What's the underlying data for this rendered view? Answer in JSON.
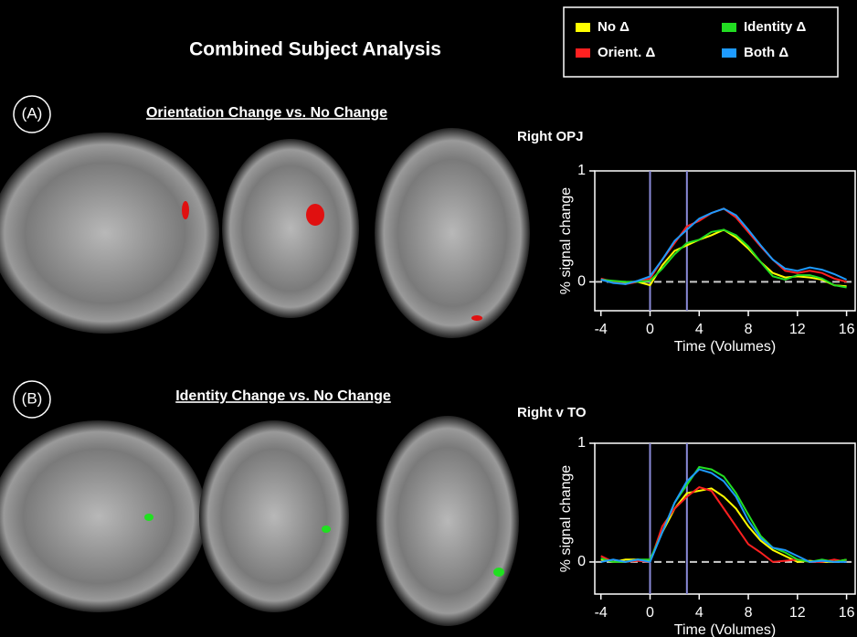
{
  "figure": {
    "title": "Combined Subject Analysis",
    "panels": [
      {
        "label": "(A)",
        "title": "Orientation Change vs. No Change"
      },
      {
        "label": "(B)",
        "title": "Identity Change vs. No Change"
      }
    ]
  },
  "chart_data": [
    {
      "type": "line",
      "title": "Right OPJ",
      "x_label": "Time (Volumes)",
      "y_label": "% signal change",
      "x": [
        -4,
        -3,
        -2,
        -1,
        0,
        1,
        2,
        3,
        4,
        5,
        6,
        7,
        8,
        9,
        10,
        11,
        12,
        13,
        14,
        15,
        16
      ],
      "xlim": [
        -4.5,
        16.7
      ],
      "xticks": [
        -4,
        0,
        4,
        8,
        12,
        16
      ],
      "ylim": [
        -0.26,
        1
      ],
      "yticks": [
        0,
        1
      ],
      "vlines": [
        0,
        3
      ],
      "zero_line": true,
      "series": [
        {
          "name": "No Δ",
          "color": "#ffff00",
          "values": [
            0.02,
            0.0,
            -0.01,
            0.0,
            -0.03,
            0.15,
            0.28,
            0.33,
            0.38,
            0.42,
            0.47,
            0.4,
            0.3,
            0.18,
            0.08,
            0.04,
            0.05,
            0.04,
            0.02,
            -0.03,
            -0.04
          ]
        },
        {
          "name": "Orient. Δ",
          "color": "#ff2020",
          "values": [
            0.03,
            0.0,
            -0.02,
            0.0,
            0.03,
            0.2,
            0.35,
            0.5,
            0.55,
            0.62,
            0.66,
            0.58,
            0.45,
            0.32,
            0.2,
            0.1,
            0.08,
            0.1,
            0.08,
            0.03,
            0.0
          ]
        },
        {
          "name": "Identity Δ",
          "color": "#22dd22",
          "values": [
            0.02,
            0.01,
            0.0,
            0.0,
            0.01,
            0.12,
            0.25,
            0.35,
            0.38,
            0.45,
            0.47,
            0.42,
            0.32,
            0.18,
            0.05,
            0.02,
            0.06,
            0.06,
            0.03,
            -0.03,
            -0.05
          ]
        },
        {
          "name": "Both Δ",
          "color": "#1e9bff",
          "values": [
            0.02,
            -0.01,
            -0.02,
            0.01,
            0.05,
            0.2,
            0.37,
            0.47,
            0.57,
            0.62,
            0.66,
            0.6,
            0.47,
            0.33,
            0.2,
            0.12,
            0.1,
            0.13,
            0.11,
            0.07,
            0.02
          ]
        }
      ]
    },
    {
      "type": "line",
      "title": "Right v TO",
      "x_label": "Time (Volumes)",
      "y_label": "% signal change",
      "x": [
        -4,
        -3,
        -2,
        -1,
        0,
        1,
        2,
        3,
        4,
        5,
        6,
        7,
        8,
        9,
        10,
        11,
        12,
        13,
        14,
        15,
        16
      ],
      "xlim": [
        -4.5,
        16.7
      ],
      "xticks": [
        -4,
        0,
        4,
        8,
        12,
        16
      ],
      "ylim": [
        -0.27,
        1
      ],
      "yticks": [
        0,
        1
      ],
      "vlines": [
        0,
        3
      ],
      "zero_line": true,
      "series": [
        {
          "name": "No Δ",
          "color": "#ffff00",
          "values": [
            0.02,
            0.0,
            0.02,
            0.02,
            0.01,
            0.25,
            0.45,
            0.58,
            0.6,
            0.62,
            0.55,
            0.45,
            0.3,
            0.18,
            0.1,
            0.05,
            0.0,
            0.01,
            0.0,
            0.0,
            0.02
          ]
        },
        {
          "name": "Orient. Δ",
          "color": "#ff2020",
          "values": [
            0.05,
            0.0,
            0.0,
            0.01,
            0.0,
            0.3,
            0.45,
            0.55,
            0.63,
            0.6,
            0.45,
            0.3,
            0.15,
            0.08,
            0.0,
            0.01,
            0.02,
            0.0,
            0.0,
            0.02,
            0.0
          ]
        },
        {
          "name": "Identity Δ",
          "color": "#22dd22",
          "values": [
            0.03,
            0.0,
            0.0,
            0.02,
            0.02,
            0.25,
            0.5,
            0.65,
            0.8,
            0.78,
            0.72,
            0.58,
            0.4,
            0.22,
            0.12,
            0.08,
            0.02,
            0.0,
            0.02,
            0.0,
            0.02
          ]
        },
        {
          "name": "Both Δ",
          "color": "#1e9bff",
          "values": [
            0.0,
            0.02,
            0.0,
            0.02,
            0.0,
            0.25,
            0.5,
            0.68,
            0.78,
            0.75,
            0.68,
            0.55,
            0.35,
            0.2,
            0.12,
            0.1,
            0.05,
            0.0,
            0.01,
            0.0,
            0.0
          ]
        }
      ]
    }
  ]
}
